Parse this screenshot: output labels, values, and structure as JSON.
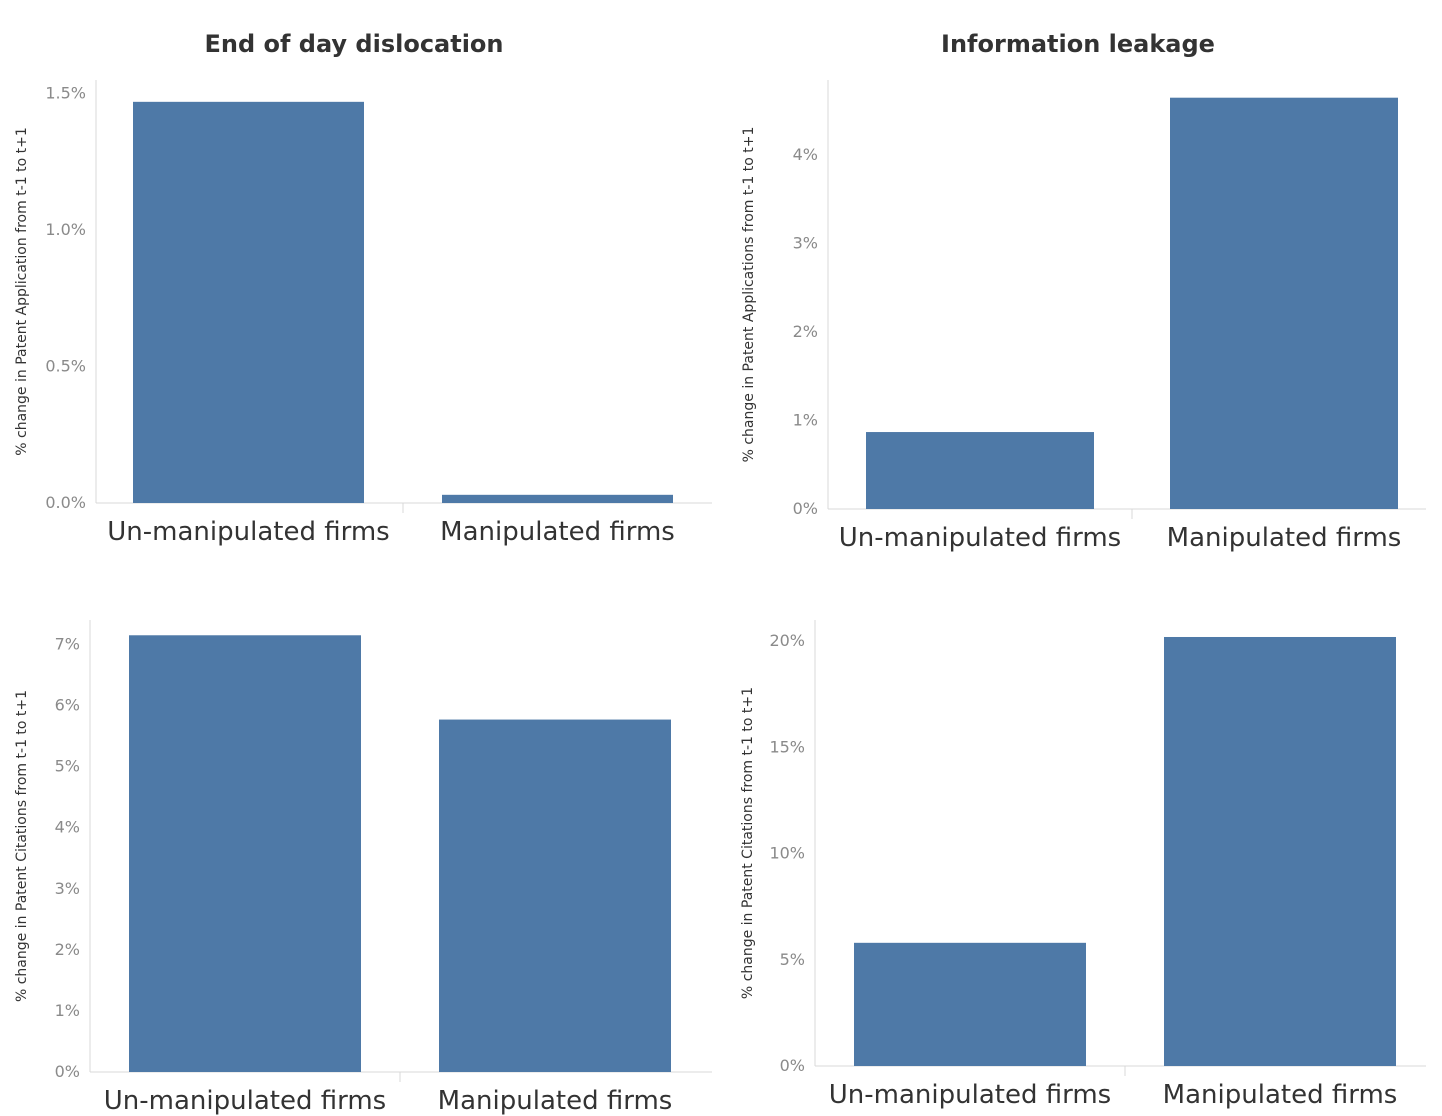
{
  "column_titles": [
    "End of day dislocation",
    "Information leakage"
  ],
  "colors": {
    "bar": "#4e79a7",
    "axis": "#d9d9d9",
    "tick_text": "#8a8a8a",
    "text": "#333333"
  },
  "chart_data": [
    {
      "type": "bar",
      "title": "End of day dislocation",
      "ylabel": "% change in Patent Application from t-1 to t+1",
      "categories": [
        "Un-manipulated firms",
        "Manipulated firms"
      ],
      "values": [
        1.47,
        0.03
      ],
      "ylim": [
        0,
        1.55
      ],
      "yticks": [
        0,
        0.5,
        1.0,
        1.5
      ],
      "ytick_labels": [
        "0.0%",
        "0.5%",
        "1.0%",
        "1.5%"
      ],
      "grid": false
    },
    {
      "type": "bar",
      "title": "Information leakage",
      "ylabel": "% change in Patent Applications from t-1 to t+1",
      "categories": [
        "Un-manipulated firms",
        "Manipulated firms"
      ],
      "values": [
        0.87,
        4.65
      ],
      "ylim": [
        0,
        4.85
      ],
      "yticks": [
        0,
        1,
        2,
        3,
        4
      ],
      "ytick_labels": [
        "0%",
        "1%",
        "2%",
        "3%",
        "4%"
      ],
      "grid": false
    },
    {
      "type": "bar",
      "ylabel": "% change in Patent Citations from t-1 to t+1",
      "categories": [
        "Un-manipulated firms",
        "Manipulated firms"
      ],
      "values": [
        7.15,
        5.77
      ],
      "ylim": [
        0,
        7.4
      ],
      "yticks": [
        0,
        1,
        2,
        3,
        4,
        5,
        6,
        7
      ],
      "ytick_labels": [
        "0%",
        "1%",
        "2%",
        "3%",
        "4%",
        "5%",
        "6%",
        "7%"
      ],
      "grid": false
    },
    {
      "type": "bar",
      "ylabel": "% change in Patent Citations from t-1 to t+1",
      "categories": [
        "Un-manipulated firms",
        "Manipulated firms"
      ],
      "values": [
        5.8,
        20.2
      ],
      "ylim": [
        0,
        21.0
      ],
      "yticks": [
        0,
        5,
        10,
        15,
        20
      ],
      "ytick_labels": [
        "0%",
        "5%",
        "10%",
        "15%",
        "20%"
      ],
      "grid": false
    }
  ]
}
